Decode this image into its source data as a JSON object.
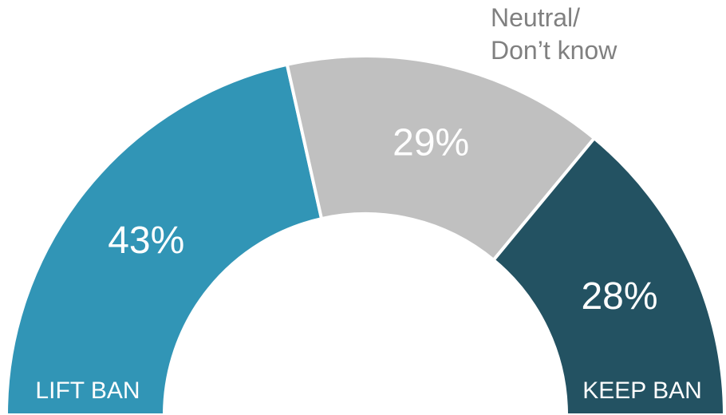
{
  "chart_data": {
    "type": "pie",
    "variant": "semicircle-donut",
    "categories": [
      "Lift ban",
      "Neutral/Don’t know",
      "Keep ban"
    ],
    "values": [
      43,
      29,
      28
    ],
    "value_labels": [
      "43%",
      "29%",
      "28%"
    ],
    "colors": [
      "#3195b6",
      "#c0c0c0",
      "#235262"
    ],
    "labels": {
      "left": "LIFT BAN",
      "right": "KEEP BAN",
      "callout_line1": "Neutral/",
      "callout_line2": "Don’t know"
    }
  }
}
